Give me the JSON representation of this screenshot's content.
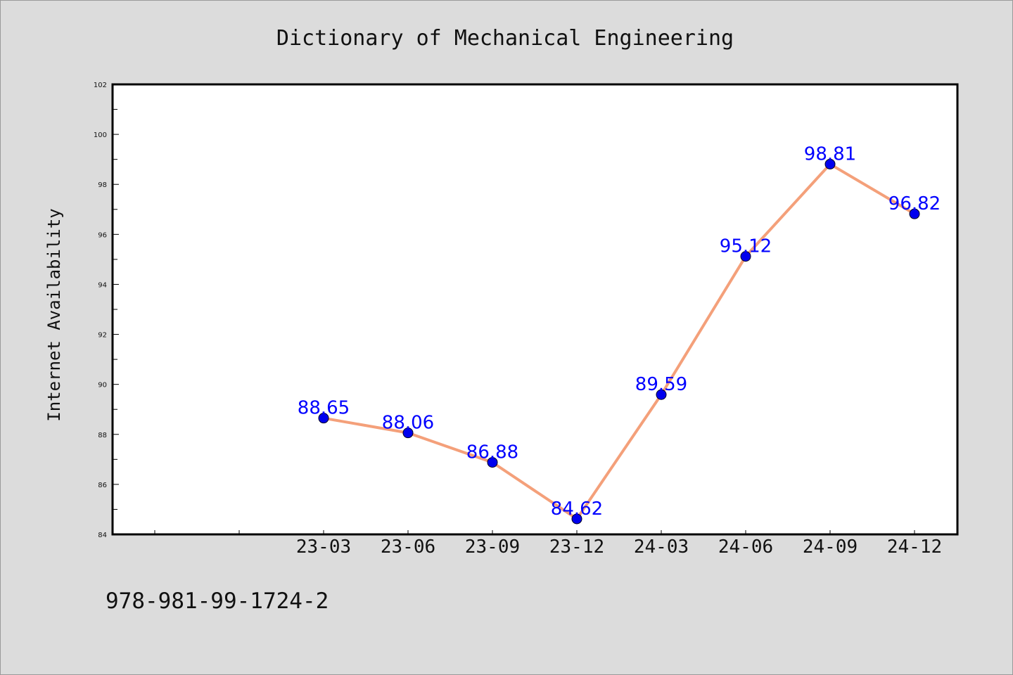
{
  "chart_data": {
    "type": "line",
    "title": "Dictionary of Mechanical Engineering",
    "xlabel": "",
    "ylabel": "Internet Availability",
    "categories": [
      "23-03",
      "23-06",
      "23-09",
      "23-12",
      "24-03",
      "24-06",
      "24-09",
      "24-12"
    ],
    "series": [
      {
        "values": [
          88.65,
          88.06,
          86.88,
          84.62,
          89.59,
          95.12,
          98.81,
          96.82
        ],
        "data_labels": [
          "88.65",
          "88.06",
          "86.88",
          "84.62",
          "89.59",
          "95.12",
          "98.81",
          "96.82"
        ],
        "line_color": "#f4a07a",
        "marker_color": "#0000ee"
      }
    ],
    "ylim": [
      84,
      102
    ],
    "y_ticks": [
      "84",
      "86",
      "88",
      "90",
      "92",
      "94",
      "96",
      "98",
      "100",
      "102"
    ],
    "grid": false,
    "legend": "none"
  },
  "footer": {
    "isbn": "978-981-99-1724-2"
  },
  "colors": {
    "background": "#dcdcdc",
    "plot_background": "#ffffff",
    "data_label": "#0000ff"
  }
}
